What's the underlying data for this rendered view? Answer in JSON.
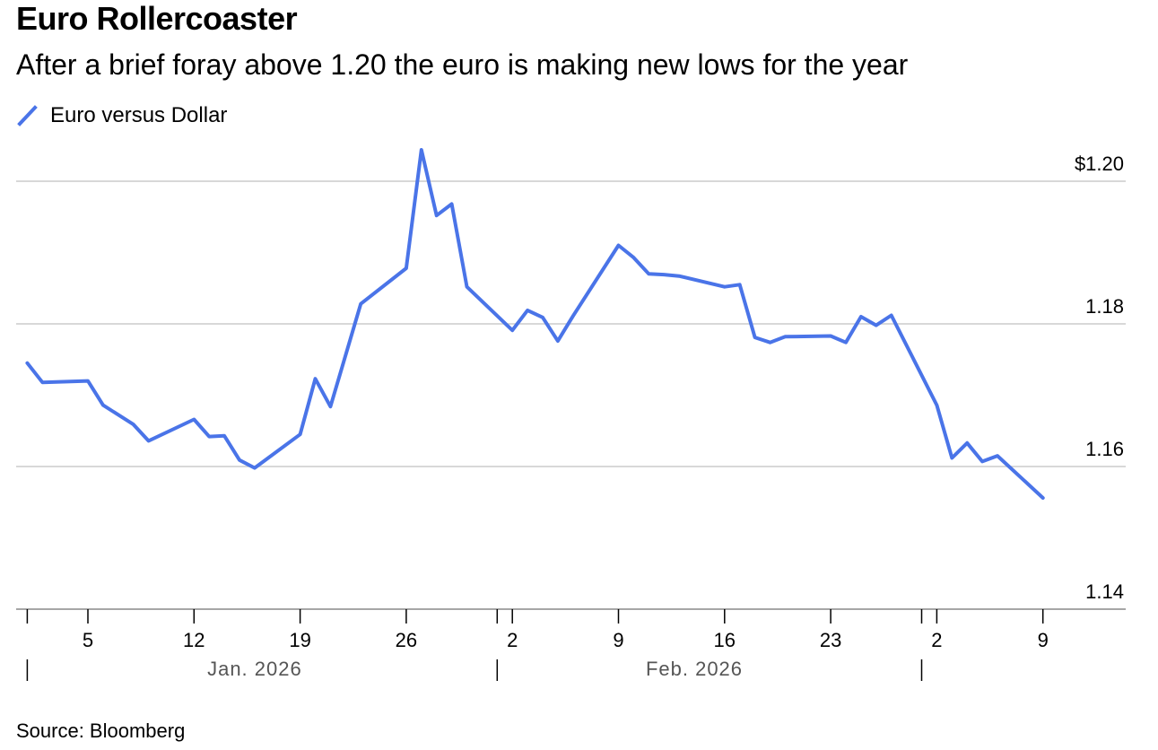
{
  "header": {
    "title": "Euro Rollercoaster",
    "subtitle": "After a brief foray above 1.20 the euro is making new lows for the year"
  },
  "legend": {
    "label": "Euro versus Dollar"
  },
  "footer": {
    "source": "Source: Bloomberg"
  },
  "colors": {
    "line": "#4a74e8",
    "grid": "#cccccc",
    "axis": "#888888"
  },
  "chart_data": {
    "type": "line",
    "title": "Euro Rollercoaster",
    "subtitle": "After a brief foray above 1.20 the euro is making new lows for the year",
    "xlabel": "",
    "ylabel": "",
    "ylim": [
      1.14,
      1.2
    ],
    "xlim": [
      "2025-12-31",
      "2026-03-11"
    ],
    "grid": true,
    "legend": "top-left",
    "y_ticks": [
      {
        "value": 1.2,
        "label": "$1.20"
      },
      {
        "value": 1.18,
        "label": "1.18"
      },
      {
        "value": 1.16,
        "label": "1.16"
      },
      {
        "value": 1.14,
        "label": "1.14"
      }
    ],
    "x_ticks": [
      {
        "date": "2026-01-05",
        "label": "5"
      },
      {
        "date": "2026-01-12",
        "label": "12"
      },
      {
        "date": "2026-01-19",
        "label": "19"
      },
      {
        "date": "2026-01-26",
        "label": "26"
      },
      {
        "date": "2026-02-02",
        "label": "2"
      },
      {
        "date": "2026-02-09",
        "label": "9"
      },
      {
        "date": "2026-02-16",
        "label": "16"
      },
      {
        "date": "2026-02-23",
        "label": "23"
      },
      {
        "date": "2026-03-02",
        "label": "2"
      },
      {
        "date": "2026-03-09",
        "label": "9"
      }
    ],
    "month_ticks": [
      "2026-01-01",
      "2026-02-01",
      "2026-03-01"
    ],
    "month_labels": [
      {
        "label": "Jan. 2026",
        "center": "2026-01-16"
      },
      {
        "label": "Feb. 2026",
        "center": "2026-02-14"
      }
    ],
    "series": [
      {
        "name": "Euro versus Dollar",
        "x": [
          "2026-01-01",
          "2026-01-02",
          "2026-01-05",
          "2026-01-06",
          "2026-01-08",
          "2026-01-09",
          "2026-01-12",
          "2026-01-13",
          "2026-01-14",
          "2026-01-15",
          "2026-01-16",
          "2026-01-19",
          "2026-01-20",
          "2026-01-21",
          "2026-01-23",
          "2026-01-26",
          "2026-01-27",
          "2026-01-28",
          "2026-01-29",
          "2026-01-30",
          "2026-02-02",
          "2026-02-03",
          "2026-02-04",
          "2026-02-05",
          "2026-02-06",
          "2026-02-09",
          "2026-02-10",
          "2026-02-11",
          "2026-02-12",
          "2026-02-13",
          "2026-02-16",
          "2026-02-17",
          "2026-02-18",
          "2026-02-19",
          "2026-02-20",
          "2026-02-23",
          "2026-02-24",
          "2026-02-25",
          "2026-02-26",
          "2026-02-27",
          "2026-03-02",
          "2026-03-03",
          "2026-03-04",
          "2026-03-05",
          "2026-03-06",
          "2026-03-09"
        ],
        "values": [
          1.1745,
          1.1718,
          1.172,
          1.1686,
          1.1659,
          1.1636,
          1.1666,
          1.1642,
          1.1643,
          1.1609,
          1.1598,
          1.1645,
          1.1723,
          1.1684,
          1.1828,
          1.1878,
          1.2044,
          1.1952,
          1.1968,
          1.1852,
          1.1791,
          1.1819,
          1.1809,
          1.1776,
          1.1811,
          1.191,
          1.1893,
          1.187,
          1.1869,
          1.1867,
          1.1852,
          1.1855,
          1.1781,
          1.1774,
          1.1782,
          1.1783,
          1.1774,
          1.181,
          1.1798,
          1.1812,
          1.1686,
          1.1612,
          1.1633,
          1.1607,
          1.1615,
          1.1556
        ]
      }
    ]
  }
}
